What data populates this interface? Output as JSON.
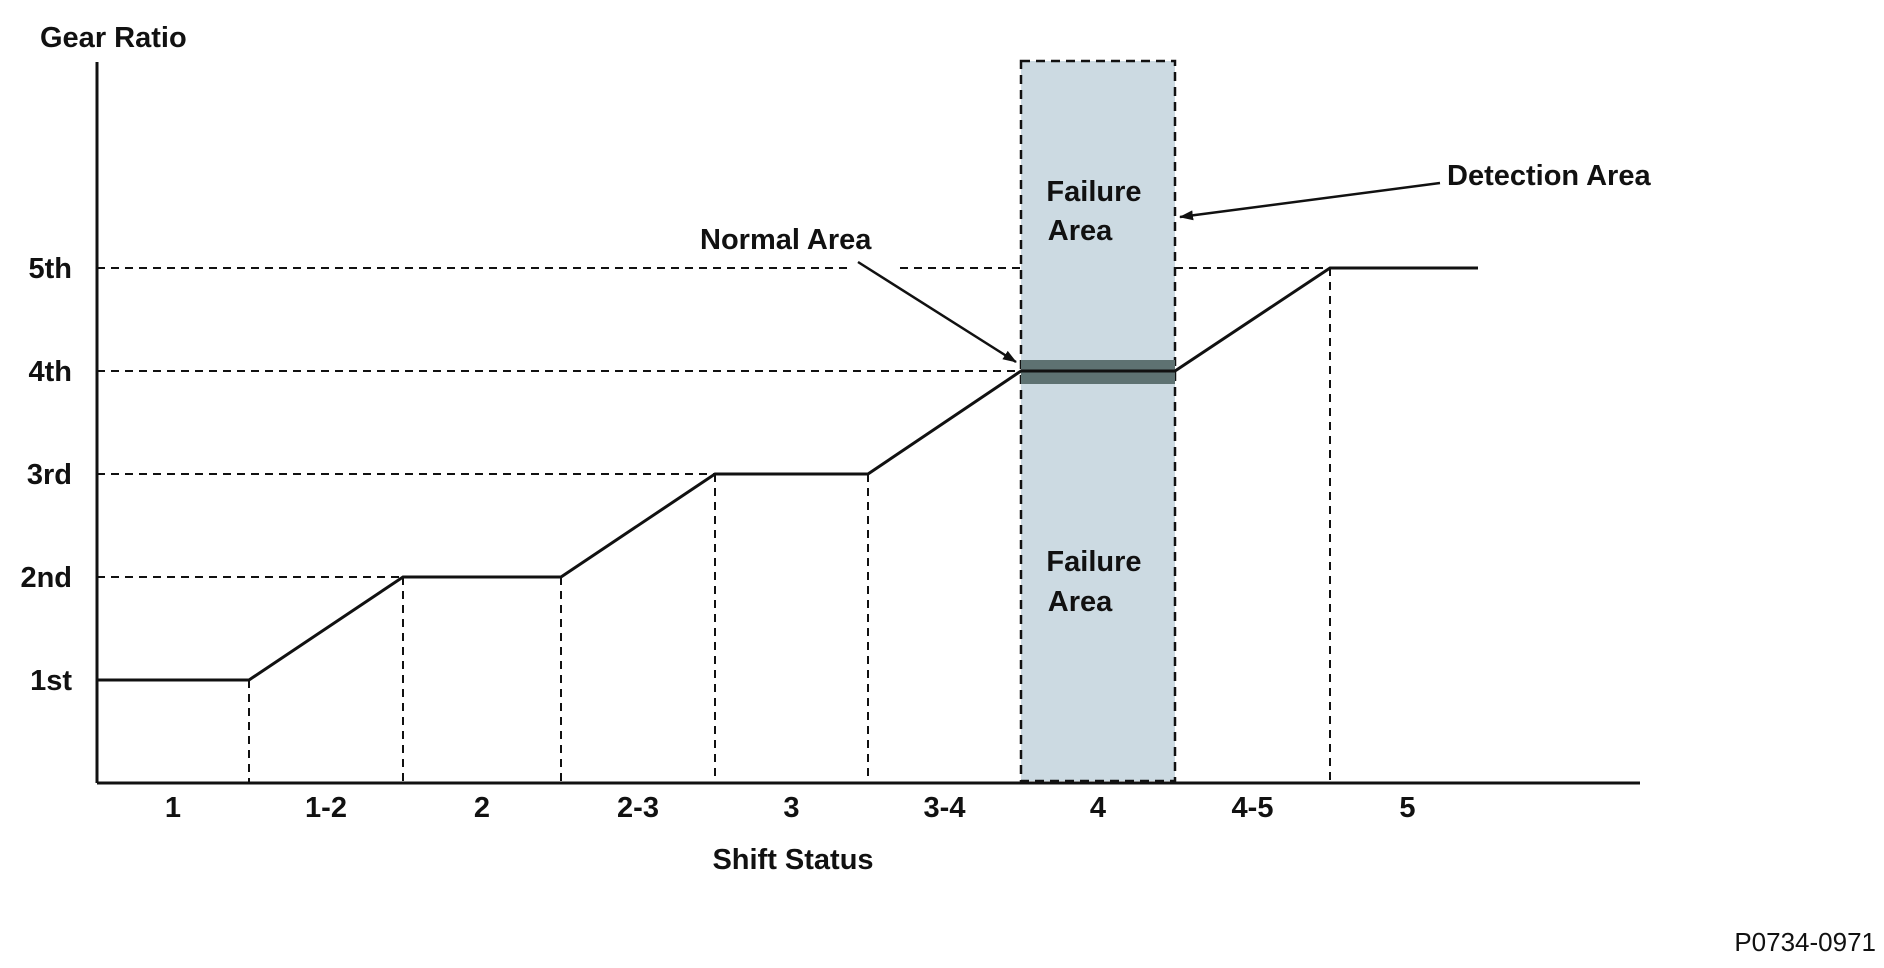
{
  "chart_data": {
    "type": "line",
    "ylabel": "Gear Ratio",
    "xlabel": "Shift Status",
    "y_levels": [
      "1st",
      "2nd",
      "3rd",
      "4th",
      "5th"
    ],
    "x_categories": [
      "1",
      "1-2",
      "2",
      "2-3",
      "3",
      "3-4",
      "4",
      "4-5",
      "5"
    ],
    "series": [
      {
        "values": [
          1,
          1.5,
          2,
          2.5,
          3,
          3.5,
          4,
          4.5,
          5
        ]
      }
    ]
  },
  "annotations": {
    "normal_area": "Normal Area",
    "detection_area": "Detection Area",
    "failure_area_upper": [
      "Failure",
      "Area"
    ],
    "failure_area_lower": [
      "Failure",
      "Area"
    ]
  },
  "figure_ref": "P0734-0971",
  "colors": {
    "line": "#111111",
    "detection_fill": "#ccdae2",
    "normal_band": "#5e7272"
  }
}
